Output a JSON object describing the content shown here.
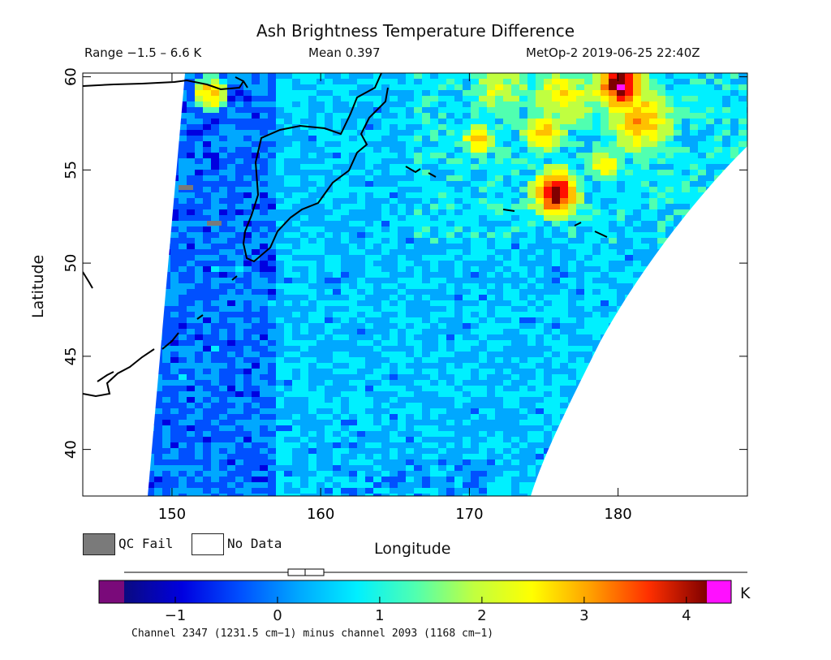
{
  "header": {
    "title": "Ash Brightness Temperature Difference",
    "range": "Range −1.5 – 6.6 K",
    "mean": "Mean 0.397",
    "satellite_time": "MetOp-2 2019-06-25 22:40Z"
  },
  "axes": {
    "xlabel": "Longitude",
    "ylabel": "Latitude",
    "x_range": [
      144,
      188.7
    ],
    "y_range": [
      37.5,
      60.2
    ],
    "x_ticks": [
      150,
      160,
      170,
      180
    ],
    "y_ticks": [
      40,
      45,
      50,
      55,
      60
    ]
  },
  "legend": {
    "qc_fail": "QC Fail",
    "no_data": "No Data",
    "qc_fail_color": "#7a7a7a",
    "no_data_color": "#ffffff"
  },
  "colorbar": {
    "unit": "K",
    "ticks": [
      -1,
      0,
      1,
      2,
      3,
      4
    ],
    "range": [
      -1.5,
      4.2
    ],
    "stats_box": {
      "whisker_low": -1.5,
      "box_low": 0.1,
      "median": 0.3,
      "box_high": 0.5,
      "whisker_high": 6.6
    },
    "under_color": "#7a0a7a",
    "over_color": "#ff10ff"
  },
  "caption": "Channel 2347 (1231.5 cm−1) minus channel 2093 (1168 cm−1)",
  "colors": {
    "scale": [
      "#0a0a80",
      "#0000e0",
      "#0050ff",
      "#00a8ff",
      "#00f0ff",
      "#50ffb0",
      "#c0ff40",
      "#ffff00",
      "#ffc000",
      "#ff7000",
      "#ff1000",
      "#800000"
    ]
  }
}
